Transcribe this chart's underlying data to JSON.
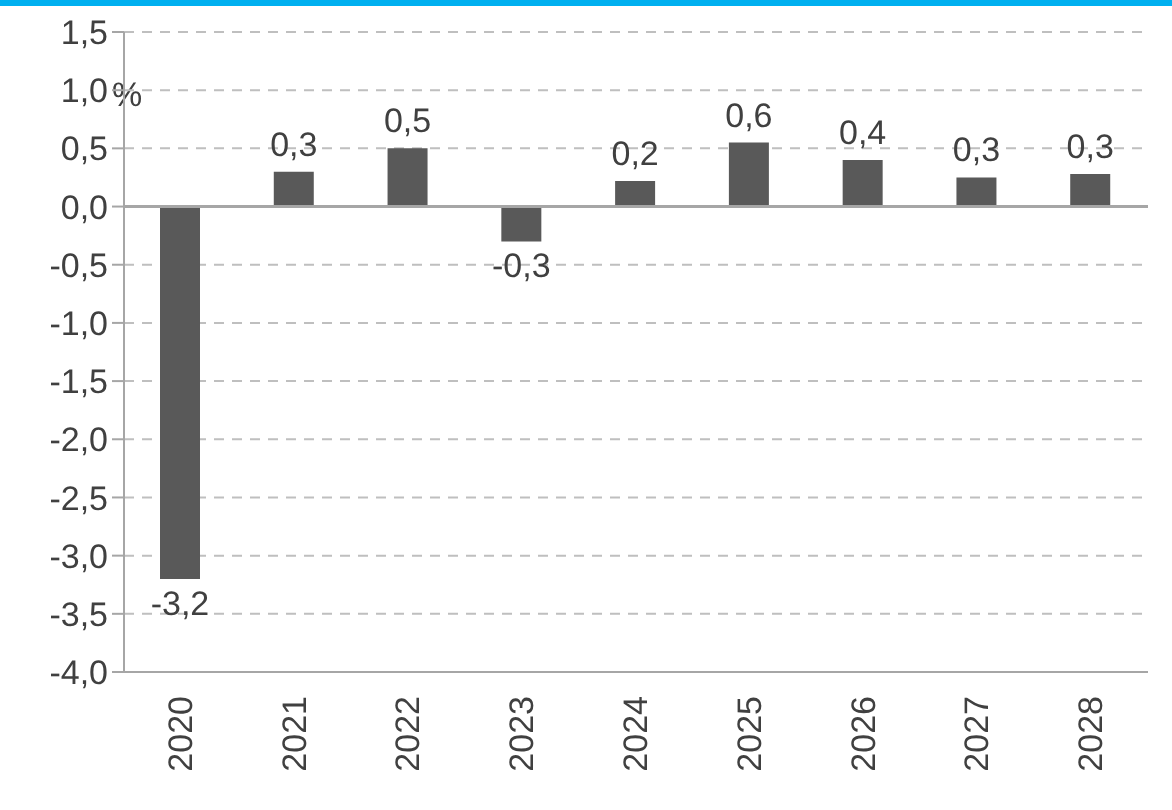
{
  "chart_data": {
    "type": "bar",
    "ylabel": "%",
    "categories": [
      "2020",
      "2021",
      "2022",
      "2023",
      "2024",
      "2025",
      "2026",
      "2027",
      "2028"
    ],
    "values": [
      -3.2,
      0.3,
      0.5,
      -0.3,
      0.22,
      0.55,
      0.4,
      0.25,
      0.28
    ],
    "color": "#595959",
    "value_labels": [
      "-3,2",
      "0,3",
      "0,5",
      "-0,3",
      "0,2",
      "0,6",
      "0,4",
      "0,3",
      "0,3"
    ],
    "ylim": [
      -4.0,
      1.5
    ],
    "yticks": [
      {
        "value": -4.0,
        "label": "-4,0"
      },
      {
        "value": -3.5,
        "label": "-3,5"
      },
      {
        "value": -3.0,
        "label": "-3,0"
      },
      {
        "value": -2.5,
        "label": "-2,5"
      },
      {
        "value": -2.0,
        "label": "-2,0"
      },
      {
        "value": -1.5,
        "label": "-1,5"
      },
      {
        "value": -1.0,
        "label": "-1,0"
      },
      {
        "value": -0.5,
        "label": "-0,5"
      },
      {
        "value": 0.0,
        "label": "0,0"
      },
      {
        "value": 0.5,
        "label": "0,5"
      },
      {
        "value": 1.0,
        "label": "1,0"
      },
      {
        "value": 1.5,
        "label": "1,5"
      }
    ],
    "grid": "y"
  }
}
